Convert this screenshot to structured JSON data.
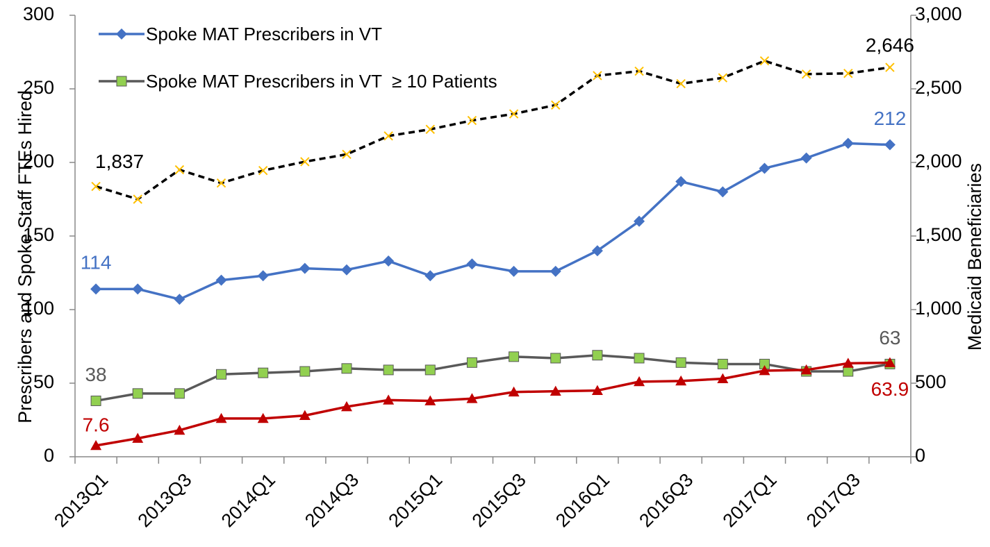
{
  "chart_data": {
    "type": "line",
    "y_label": "Prescribers and Spoke Staff FTEs Hired",
    "y2_label": "Medicaid Beneficiaries",
    "categories": [
      "2013Q1",
      null,
      "2013Q3",
      null,
      "2014Q1",
      null,
      "2014Q3",
      null,
      "2015Q1",
      null,
      "2015Q3",
      null,
      "2016Q1",
      null,
      "2016Q3",
      null,
      "2017Q1",
      null,
      "2017Q3",
      null
    ],
    "ylim": [
      0,
      300
    ],
    "yticks": [
      0,
      50,
      100,
      150,
      200,
      250,
      300
    ],
    "y2lim": [
      0,
      3000
    ],
    "y2ticks": [
      0,
      500,
      {
        "value": 1000,
        "label": "1,000"
      },
      {
        "value": 1500,
        "label": "1,500"
      },
      {
        "value": 2000,
        "label": "2,000"
      },
      {
        "value": 2500,
        "label": "2,500"
      },
      {
        "value": 3000,
        "label": "3,000"
      }
    ],
    "legend": "upper left",
    "series": [
      {
        "name": "Spoke MAT Prescribers in VT",
        "color": "#4472c4",
        "marker": "diamond",
        "values": [
          114,
          114,
          107,
          120,
          123,
          128,
          127,
          133,
          123,
          131,
          126,
          126,
          140,
          160,
          187,
          180,
          196,
          203,
          213,
          212
        ],
        "value_labels": [
          "114",
          null,
          null,
          null,
          null,
          null,
          null,
          null,
          null,
          null,
          null,
          null,
          null,
          null,
          null,
          null,
          null,
          null,
          null,
          "212"
        ]
      },
      {
        "name": "Spoke MAT Prescribers in VT  ≥ 10 Patients",
        "color": "#595959",
        "marker_color": "#92d050",
        "marker": "square",
        "values": [
          38,
          43,
          43,
          56,
          57,
          58,
          60,
          59,
          59,
          64,
          68,
          67,
          69,
          67,
          64,
          63,
          63,
          58,
          58,
          63
        ],
        "value_labels": [
          "38",
          null,
          null,
          null,
          null,
          null,
          null,
          null,
          null,
          null,
          null,
          null,
          null,
          null,
          null,
          null,
          null,
          null,
          null,
          "63"
        ]
      },
      {
        "color": "#c00000",
        "marker": "triangle",
        "values": [
          7.6,
          12.5,
          18,
          26,
          26,
          28,
          34,
          38.5,
          38,
          39.5,
          44,
          44.5,
          45,
          51,
          51.5,
          53,
          58.5,
          59,
          63.5,
          63.9
        ],
        "value_labels": [
          "7.6",
          null,
          null,
          null,
          null,
          null,
          null,
          null,
          null,
          null,
          null,
          null,
          null,
          null,
          null,
          null,
          null,
          null,
          null,
          "63.9"
        ]
      },
      {
        "color": "#000000",
        "marker_color": "#ffc000",
        "marker": "x",
        "dashed": true,
        "axis": "y2",
        "values": [
          1837,
          1750,
          1950,
          1860,
          1945,
          2005,
          2055,
          2180,
          2225,
          2285,
          2330,
          2390,
          2590,
          2620,
          2535,
          2575,
          2690,
          2600,
          2605,
          2646
        ],
        "value_labels": [
          "1,837",
          null,
          null,
          null,
          null,
          null,
          null,
          null,
          null,
          null,
          null,
          null,
          null,
          null,
          null,
          null,
          null,
          null,
          null,
          "2,646"
        ]
      }
    ]
  }
}
